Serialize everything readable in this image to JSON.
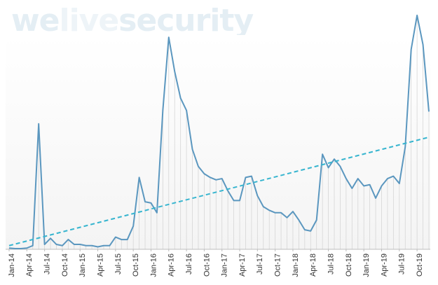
{
  "watermark": {
    "part1": "we",
    "part2": "live",
    "part3": "security"
  },
  "chart_data": {
    "type": "line",
    "title": "",
    "xlabel": "",
    "ylabel": "",
    "ylim": [
      0,
      100
    ],
    "grid": false,
    "legend": "none",
    "tick_labels": [
      "Jan-14",
      "Apr-14",
      "Jul-14",
      "Oct-14",
      "Jan-15",
      "Apr-15",
      "Jul-15",
      "Oct-15",
      "Jan-16",
      "Apr-16",
      "Jul-16",
      "Oct-16",
      "Jan-17",
      "Apr-17",
      "Jul-17",
      "Oct-17",
      "Jan-18",
      "Apr-18",
      "Jul-18",
      "Oct-18",
      "Jan-19",
      "Apr-19",
      "Jul-19",
      "Oct-19"
    ],
    "series": [
      {
        "values": [
          0.5,
          0.3,
          0.3,
          0.5,
          1.5,
          51.5,
          2,
          4.5,
          2,
          1.5,
          4,
          2,
          2,
          1.5,
          1.5,
          1,
          1.5,
          1.5,
          5,
          4,
          4,
          9.5,
          29.5,
          19.5,
          19,
          15,
          57,
          87,
          73,
          62,
          57,
          41,
          34,
          31,
          29.5,
          28.5,
          29,
          24,
          20,
          20,
          29.5,
          30,
          22,
          17.5,
          16,
          15,
          15,
          13,
          15.5,
          12,
          8,
          7.5,
          12,
          39,
          33.5,
          37,
          34,
          29,
          25,
          29,
          26,
          26.5,
          21,
          26,
          29,
          30,
          27,
          42,
          82,
          96,
          84,
          56.5
        ],
        "color": "#5b97bf"
      },
      {
        "type": "trend",
        "style": "dashed",
        "values": [
          1.5,
          46
        ],
        "color": "#37b5cf"
      }
    ]
  }
}
